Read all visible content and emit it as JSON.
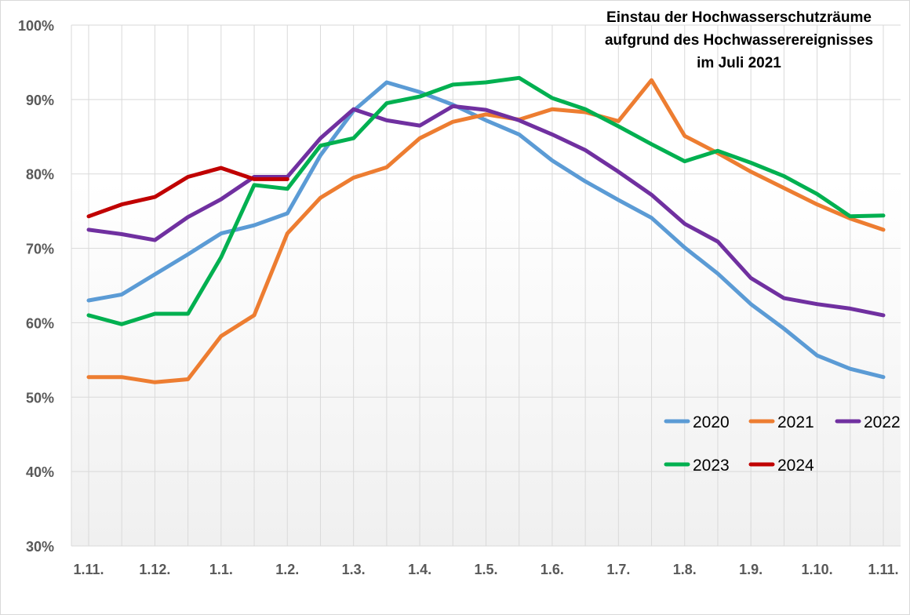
{
  "chart_data": {
    "type": "line",
    "title_lines": [
      "Einstau der Hochwasserschutzräume",
      "aufgrund des Hochwasserereignisses",
      "im Juli 2021"
    ],
    "x_tick_labels": [
      "1.11.",
      "1.12.",
      "1.1.",
      "1.2.",
      "1.3.",
      "1.4.",
      "1.5.",
      "1.6.",
      "1.7.",
      "1.8.",
      "1.9.",
      "1.10.",
      "1.11."
    ],
    "y_tick_labels": [
      "30%",
      "40%",
      "50%",
      "60%",
      "70%",
      "80%",
      "90%",
      "100%"
    ],
    "ylim": [
      30,
      100
    ],
    "y_unit": "%",
    "grid": true,
    "legend_position": "lower-right",
    "point_count": 25,
    "series": [
      {
        "name": "2020",
        "color": "#5b9bd5",
        "values": [
          63.0,
          63.8,
          66.5,
          69.2,
          72.0,
          73.1,
          74.7,
          82.5,
          88.5,
          92.3,
          91.0,
          89.3,
          87.2,
          85.3,
          81.8,
          79.0,
          76.5,
          74.1,
          70.1,
          66.6,
          62.5,
          59.2,
          55.6,
          53.8,
          52.7
        ]
      },
      {
        "name": "2021",
        "color": "#ed7d31",
        "values": [
          52.7,
          52.7,
          52.0,
          52.4,
          58.2,
          61.0,
          72.0,
          76.8,
          79.5,
          80.9,
          84.8,
          87.0,
          88.0,
          87.3,
          88.7,
          88.3,
          87.1,
          92.6,
          85.1,
          82.8,
          80.3,
          78.1,
          75.9,
          74.0,
          72.5
        ]
      },
      {
        "name": "2022",
        "color": "#7030a0",
        "values": [
          72.5,
          71.9,
          71.1,
          74.2,
          76.6,
          79.6,
          79.6,
          84.8,
          88.7,
          87.2,
          86.5,
          89.1,
          88.6,
          87.2,
          85.3,
          83.2,
          80.3,
          77.2,
          73.3,
          70.9,
          66.0,
          63.3,
          62.5,
          61.9,
          61.0
        ]
      },
      {
        "name": "2023",
        "color": "#00b050",
        "values": [
          61.0,
          59.8,
          61.2,
          61.2,
          68.8,
          78.5,
          78.0,
          83.8,
          84.8,
          89.5,
          90.4,
          92.0,
          92.3,
          92.9,
          90.2,
          88.7,
          86.4,
          84.0,
          81.7,
          83.1,
          81.5,
          79.7,
          77.3,
          74.3,
          74.4
        ]
      },
      {
        "name": "2024",
        "color": "#c00000",
        "values": [
          74.3,
          75.9,
          76.9,
          79.6,
          80.8,
          79.3,
          79.3
        ]
      }
    ]
  }
}
